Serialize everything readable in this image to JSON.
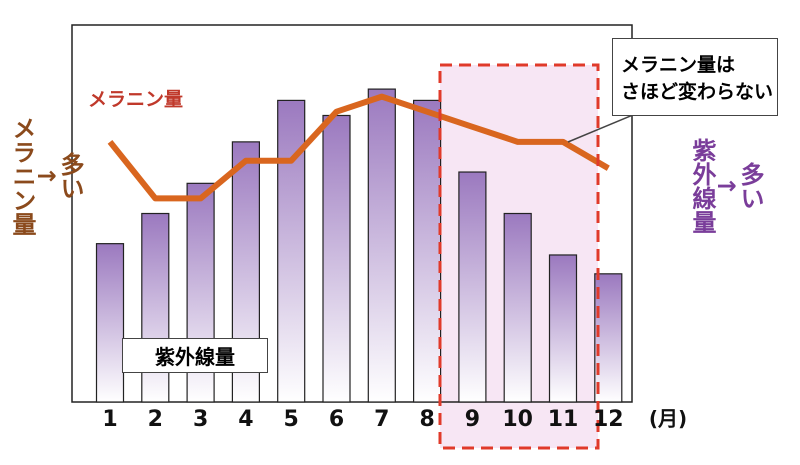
{
  "chart_data": {
    "type": "bar",
    "categories": [
      "1",
      "2",
      "3",
      "4",
      "5",
      "6",
      "7",
      "8",
      "9",
      "10",
      "11",
      "12"
    ],
    "x_unit": "(月)",
    "ylim": [
      0,
      100
    ],
    "series": [
      {
        "name": "紫外線量",
        "type": "bar",
        "color": "#9b79bf",
        "values": [
          42,
          50,
          58,
          69,
          80,
          76,
          83,
          80,
          61,
          50,
          39,
          34
        ]
      },
      {
        "name": "メラニン量",
        "type": "line",
        "color": "#d9661f",
        "values": [
          69,
          54,
          54,
          64,
          64,
          77,
          81,
          77,
          73,
          69,
          69,
          62
        ]
      }
    ],
    "left_label": [
      "多い",
      "↑",
      "メラニン量"
    ],
    "right_label": [
      "多い",
      "↑",
      "紫外線量"
    ],
    "callout": [
      "メラニン量は",
      "さほど変わらない"
    ]
  }
}
